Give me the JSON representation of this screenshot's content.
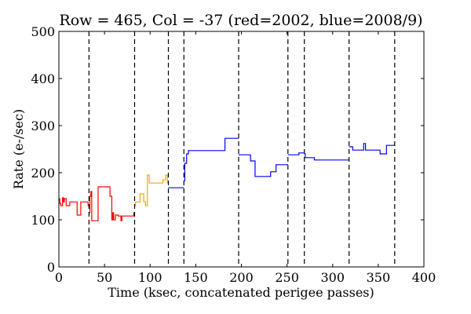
{
  "chart_data": {
    "type": "line",
    "title": "Row = 465, Col = -37 (red=2002, blue=2008/9)",
    "xlabel": "Time (ksec, concatenated perigee passes)",
    "ylabel": "Rate (e-/sec)",
    "xlim": [
      0,
      400
    ],
    "ylim": [
      0,
      500
    ],
    "xticks": [
      "0",
      "50",
      "100",
      "150",
      "200",
      "250",
      "300",
      "350",
      "400"
    ],
    "yticks": [
      "0",
      "100",
      "200",
      "300",
      "400",
      "500"
    ],
    "grid": false,
    "vlines": [
      33,
      83,
      120,
      137,
      197,
      251,
      269,
      318,
      368
    ],
    "series": [
      {
        "color": "#ff0000",
        "segments": [
          [
            [
              0,
              145
            ],
            [
              1,
              145
            ],
            [
              1,
              135
            ],
            [
              2,
              135
            ],
            [
              2,
              130
            ],
            [
              4,
              130
            ],
            [
              4,
              147
            ],
            [
              5,
              147
            ],
            [
              5,
              138
            ],
            [
              6,
              138
            ],
            [
              6,
              145
            ],
            [
              8,
              145
            ],
            [
              8,
              130
            ],
            [
              12,
              130
            ],
            [
              12,
              138
            ],
            [
              20,
              138
            ],
            [
              20,
              110
            ],
            [
              24,
              110
            ],
            [
              24,
              138
            ],
            [
              32,
              138
            ],
            [
              32,
              130
            ],
            [
              33,
              130
            ]
          ],
          [
            [
              33,
              115
            ],
            [
              34,
              115
            ],
            [
              34,
              150
            ],
            [
              35,
              150
            ],
            [
              35,
              160
            ],
            [
              36,
              160
            ],
            [
              36,
              98
            ],
            [
              43,
              98
            ],
            [
              43,
              170
            ],
            [
              56,
              170
            ],
            [
              56,
              150
            ],
            [
              58,
              150
            ],
            [
              58,
              100
            ],
            [
              59,
              100
            ],
            [
              59,
              115
            ],
            [
              60,
              115
            ],
            [
              60,
              100
            ],
            [
              62,
              100
            ],
            [
              62,
              110
            ],
            [
              65,
              110
            ],
            [
              65,
              108
            ],
            [
              68,
              108
            ],
            [
              68,
              98
            ],
            [
              69,
              98
            ],
            [
              69,
              108
            ],
            [
              82,
              108
            ],
            [
              82,
              115
            ],
            [
              83,
              115
            ]
          ]
        ]
      },
      {
        "color": "#ffa500",
        "segments": [
          [
            [
              83,
              130
            ],
            [
              84,
              130
            ],
            [
              84,
              138
            ],
            [
              89,
              138
            ],
            [
              89,
              155
            ],
            [
              93,
              155
            ],
            [
              93,
              138
            ],
            [
              95,
              138
            ],
            [
              95,
              130
            ],
            [
              97,
              130
            ],
            [
              97,
              195
            ],
            [
              99,
              195
            ],
            [
              99,
              178
            ],
            [
              114,
              178
            ],
            [
              114,
              185
            ],
            [
              117,
              185
            ],
            [
              117,
              195
            ],
            [
              119,
              195
            ],
            [
              119,
              178
            ],
            [
              120,
              178
            ]
          ]
        ]
      },
      {
        "color": "#0000ff",
        "segments": [
          [
            [
              120,
              168
            ],
            [
              137,
              168
            ]
          ],
          [
            [
              137,
              183
            ],
            [
              138,
              183
            ],
            [
              138,
              220
            ],
            [
              140,
              220
            ],
            [
              140,
              240
            ],
            [
              142,
              240
            ],
            [
              142,
              247
            ],
            [
              182,
              247
            ],
            [
              182,
              273
            ],
            [
              197,
              273
            ]
          ],
          [
            [
              197,
              238
            ],
            [
              210,
              238
            ],
            [
              210,
              225
            ],
            [
              215,
              225
            ],
            [
              215,
              192
            ],
            [
              232,
              192
            ],
            [
              232,
              202
            ],
            [
              238,
              202
            ],
            [
              238,
              217
            ],
            [
              251,
              217
            ]
          ],
          [
            [
              251,
              238
            ],
            [
              263,
              238
            ],
            [
              263,
              242
            ],
            [
              269,
              242
            ]
          ],
          [
            [
              269,
              240
            ],
            [
              270,
              240
            ],
            [
              270,
              232
            ],
            [
              280,
              232
            ],
            [
              280,
              227
            ],
            [
              318,
              227
            ]
          ],
          [
            [
              318,
              255
            ],
            [
              322,
              255
            ],
            [
              322,
              248
            ],
            [
              334,
              248
            ],
            [
              334,
              262
            ],
            [
              336,
              262
            ],
            [
              336,
              248
            ],
            [
              352,
              248
            ],
            [
              352,
              240
            ],
            [
              359,
              240
            ],
            [
              359,
              258
            ],
            [
              368,
              258
            ]
          ]
        ]
      }
    ]
  }
}
